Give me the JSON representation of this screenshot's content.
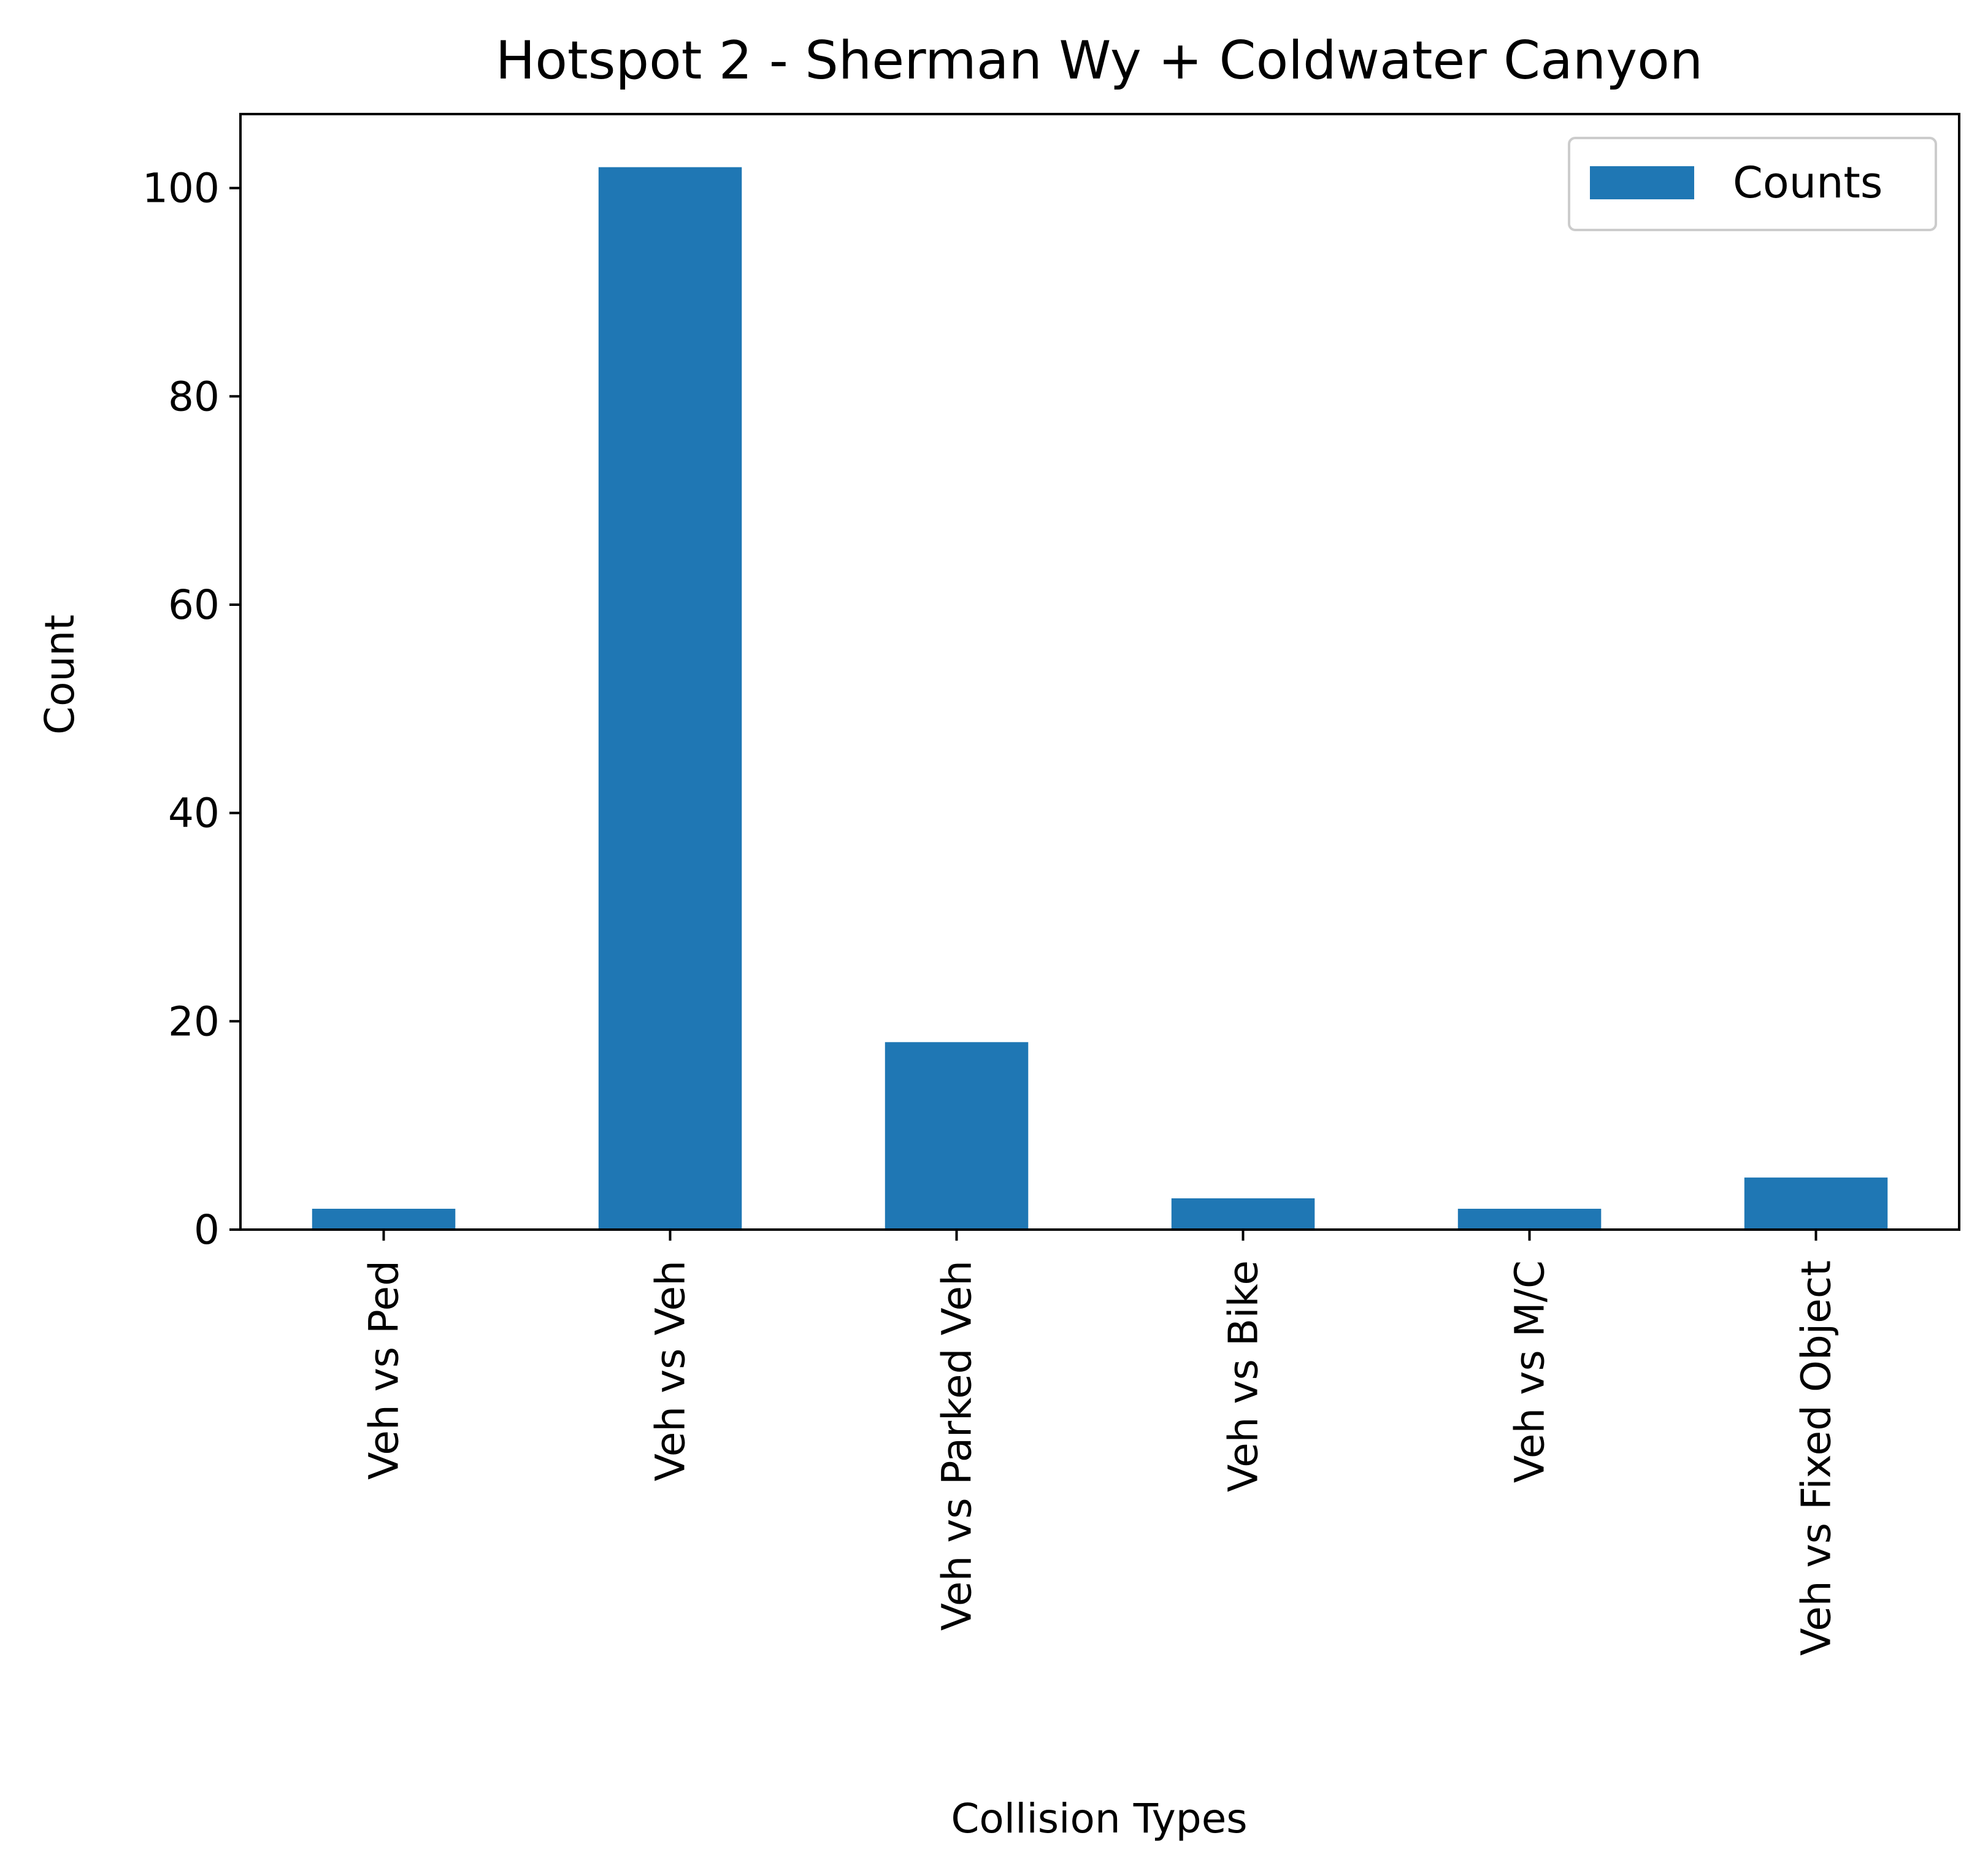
{
  "chart_data": {
    "type": "bar",
    "title": "Hotspot 2 - Sherman Wy + Coldwater Canyon",
    "xlabel": "Collision Types",
    "ylabel": "Count",
    "categories": [
      "Veh vs Ped",
      "Veh vs Veh",
      "Veh vs Parked Veh",
      "Veh vs Bike",
      "Veh vs M/C",
      "Veh vs Fixed Object"
    ],
    "series": [
      {
        "name": "Counts",
        "values": [
          2,
          102,
          18,
          3,
          2,
          5
        ]
      }
    ],
    "ylim": [
      0,
      107.1
    ],
    "yticks": [
      0,
      20,
      40,
      60,
      80,
      100
    ],
    "bar_color": "#1f77b4",
    "grid": false,
    "legend_position": "upper right"
  }
}
